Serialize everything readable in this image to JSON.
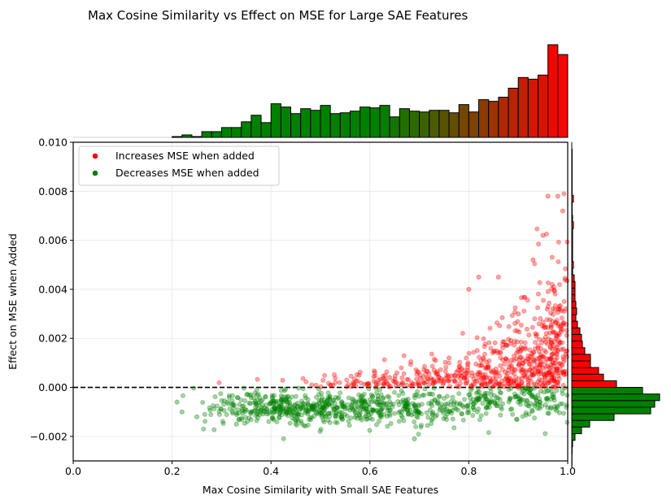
{
  "chart_data": {
    "type": "scatter",
    "title": "Max Cosine Similarity vs Effect on MSE for Large SAE Features",
    "xlabel": "Max Cosine Similarity with Small SAE Features",
    "ylabel": "Effect on MSE when Added",
    "xlim": [
      0.0,
      1.0
    ],
    "ylim": [
      -0.003,
      0.01
    ],
    "grid": true,
    "x_ticks": [
      0.0,
      0.2,
      0.4,
      0.6,
      0.8,
      1.0
    ],
    "x_tick_labels": [
      "0.0",
      "0.2",
      "0.4",
      "0.6",
      "0.8",
      "1.0"
    ],
    "y_ticks": [
      -0.002,
      0.0,
      0.002,
      0.004,
      0.006,
      0.008,
      0.01
    ],
    "y_tick_labels": [
      "−0.002",
      "0.000",
      "0.002",
      "0.004",
      "0.006",
      "0.008",
      "0.010"
    ],
    "reference_line": {
      "y": 0.0,
      "style": "dashed",
      "color": "#000000"
    },
    "legend": {
      "placement": "top-left",
      "entries": [
        {
          "label": "Increases MSE when added",
          "color": "#ff0000"
        },
        {
          "label": "Decreases MSE when added",
          "color": "#008000"
        }
      ]
    },
    "series": [
      {
        "name": "Increases MSE when added",
        "color": "#ff0000",
        "alpha": 0.35,
        "approx_count": 700,
        "distribution": "x concentrated near 0.85-1.0, y rising steeply with x from 0 to ~0.008",
        "sample_points": [
          [
            0.53,
            0.0002
          ],
          [
            0.64,
            0.0004
          ],
          [
            0.73,
            0.0007
          ],
          [
            0.76,
            0.0012
          ],
          [
            0.8,
            0.004
          ],
          [
            0.82,
            0.0045
          ],
          [
            0.86,
            0.0045
          ],
          [
            0.9,
            0.003
          ],
          [
            0.93,
            0.0052
          ],
          [
            0.95,
            0.0062
          ],
          [
            0.96,
            0.0078
          ],
          [
            0.98,
            0.0078
          ],
          [
            0.99,
            0.0072
          ]
        ]
      },
      {
        "name": "Decreases MSE when added",
        "color": "#008000",
        "alpha": 0.35,
        "approx_count": 850,
        "distribution": "x from 0.21 to 0.98, y mostly between -0.0015 and 0, centered near -0.0008",
        "sample_points": [
          [
            0.21,
            -0.0006
          ],
          [
            0.22,
            -0.001
          ],
          [
            0.25,
            -0.0012
          ],
          [
            0.33,
            -0.0015
          ],
          [
            0.4,
            -0.0006
          ],
          [
            0.5,
            -0.0008
          ],
          [
            0.6,
            -0.0005
          ],
          [
            0.69,
            -0.0021
          ],
          [
            0.8,
            -0.0003
          ],
          [
            0.9,
            -0.0006
          ],
          [
            0.97,
            -0.0004
          ]
        ]
      }
    ],
    "top_histogram": {
      "variable": "Max Cosine Similarity",
      "bin_start": 0.0,
      "bin_width": 0.02,
      "counts": [
        0,
        0,
        0,
        0,
        0,
        0,
        0,
        0,
        0,
        0,
        1,
        3,
        1,
        7,
        7,
        12,
        12,
        19,
        27,
        18,
        41,
        37,
        29,
        35,
        33,
        39,
        29,
        30,
        32,
        37,
        36,
        39,
        25,
        35,
        32,
        31,
        33,
        33,
        30,
        40,
        31,
        46,
        44,
        49,
        60,
        73,
        71,
        76,
        113,
        101
      ],
      "color_gradient": [
        "#008000",
        "#ff0000"
      ],
      "color_note": "bins green until ~0.62, then gradient to red at 1.0"
    },
    "right_histogram": {
      "variable": "Effect on MSE when Added",
      "orientation": "horizontal",
      "bin_width": 0.00027,
      "bins_below_zero": {
        "color": "#008000",
        "counts_from_zero_down": [
          87,
          108,
          102,
          97,
          52,
          22,
          12,
          4,
          1,
          0.5,
          0.3,
          0.3
        ]
      },
      "bins_above_zero": {
        "color": "#ff0000",
        "counts_from_zero_up": [
          55,
          39,
          33,
          23,
          23,
          16,
          13,
          12,
          10,
          7,
          5,
          6,
          5,
          4,
          4,
          4,
          3,
          1,
          2,
          1,
          1,
          1,
          1,
          1,
          2,
          1,
          0.5,
          0.5,
          2,
          0.5,
          0.5,
          0.5,
          0.5,
          0.5,
          0.5,
          0.5
        ]
      }
    }
  }
}
